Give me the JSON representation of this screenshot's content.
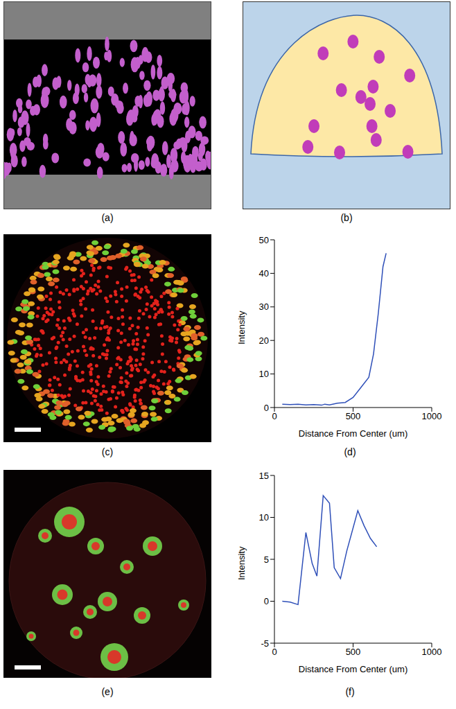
{
  "panel_labels": [
    "(a)",
    "(b)",
    "(c)",
    "(d)",
    "(e)",
    "(f)"
  ],
  "chart_data": [
    {
      "type": "line",
      "x_label": "Distance From Center (um)",
      "y_label": "Intensity",
      "x": [
        50,
        100,
        150,
        200,
        250,
        300,
        320,
        350,
        400,
        450,
        500,
        550,
        600,
        630,
        660,
        690,
        710
      ],
      "values": [
        1,
        0.9,
        1,
        0.8,
        0.9,
        0.7,
        1,
        0.8,
        1.3,
        1.5,
        3,
        6,
        9,
        16,
        28,
        42,
        46
      ],
      "color": "#2e4fb8",
      "xlim": [
        0,
        1000
      ],
      "xticks": [
        0,
        500,
        1000
      ],
      "ylim": [
        0,
        50
      ],
      "yticks": [
        0,
        10,
        20,
        30,
        40,
        50
      ]
    },
    {
      "type": "line",
      "x_label": "Distance From Center (um)",
      "y_label": "Intensity",
      "x": [
        50,
        100,
        150,
        200,
        240,
        270,
        310,
        350,
        380,
        420,
        460,
        530,
        570,
        610,
        650
      ],
      "values": [
        0,
        -0.1,
        -0.4,
        8.2,
        4.5,
        3,
        12.6,
        11.7,
        4,
        2.7,
        6,
        10.8,
        9,
        7.5,
        6.5
      ],
      "color": "#2e4fb8",
      "xlim": [
        0,
        1000
      ],
      "xticks": [
        0,
        500,
        1000
      ],
      "ylim": [
        -5,
        15
      ],
      "yticks": [
        -5,
        0,
        5,
        10,
        15
      ]
    }
  ]
}
